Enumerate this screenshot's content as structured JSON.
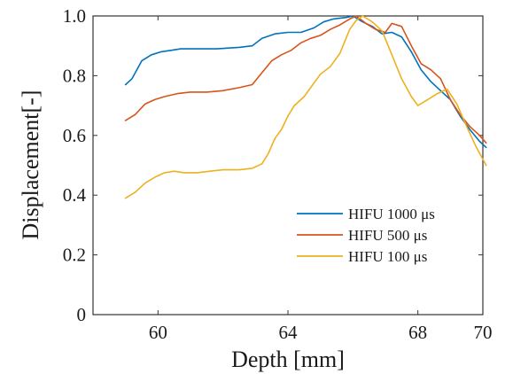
{
  "chart_data": {
    "type": "line",
    "xlabel": "Depth [mm]",
    "ylabel": "Displacement[-]",
    "xlim": [
      58,
      70
    ],
    "ylim": [
      0,
      1.0
    ],
    "x_ticks": [
      60,
      64,
      68,
      70
    ],
    "y_ticks": [
      0,
      0.2,
      0.4,
      0.6,
      0.8,
      1.0
    ],
    "y_tick_labels": [
      "0",
      "0.2",
      "0.4",
      "0.6",
      "0.8",
      "1.0"
    ],
    "grid": false,
    "legend_position": "lower-right",
    "series": [
      {
        "name": "HIFU 1000 μs",
        "color": "#0072BD",
        "x": [
          59.0,
          59.2,
          59.5,
          59.8,
          60.1,
          60.4,
          60.7,
          61.2,
          61.8,
          62.5,
          62.9,
          63.2,
          63.6,
          64.0,
          64.4,
          64.8,
          65.1,
          65.4,
          65.8,
          66.0,
          66.3,
          66.6,
          66.9,
          67.2,
          67.5,
          67.8,
          68.1,
          68.4,
          68.7,
          69.0,
          69.3,
          69.6,
          69.9,
          70.1
        ],
        "y": [
          0.77,
          0.79,
          0.85,
          0.87,
          0.88,
          0.885,
          0.89,
          0.89,
          0.89,
          0.895,
          0.9,
          0.925,
          0.94,
          0.945,
          0.945,
          0.96,
          0.98,
          0.99,
          0.995,
          1.0,
          0.98,
          0.965,
          0.94,
          0.945,
          0.93,
          0.88,
          0.82,
          0.78,
          0.75,
          0.72,
          0.665,
          0.62,
          0.58,
          0.56
        ]
      },
      {
        "name": "HIFU 500 μs",
        "color": "#D95319",
        "x": [
          59.0,
          59.3,
          59.6,
          59.9,
          60.2,
          60.6,
          61.0,
          61.5,
          62.0,
          62.5,
          62.9,
          63.2,
          63.5,
          63.8,
          64.1,
          64.4,
          64.7,
          65.0,
          65.3,
          65.6,
          65.9,
          66.1,
          66.4,
          66.7,
          67.0,
          67.2,
          67.5,
          67.8,
          68.1,
          68.4,
          68.7,
          69.0,
          69.3,
          69.6,
          69.9,
          70.1
        ],
        "y": [
          0.65,
          0.67,
          0.705,
          0.72,
          0.73,
          0.74,
          0.745,
          0.745,
          0.75,
          0.76,
          0.77,
          0.81,
          0.85,
          0.87,
          0.885,
          0.91,
          0.925,
          0.935,
          0.955,
          0.97,
          0.99,
          1.0,
          0.975,
          0.955,
          0.945,
          0.975,
          0.965,
          0.9,
          0.84,
          0.82,
          0.79,
          0.72,
          0.67,
          0.63,
          0.6,
          0.575
        ]
      },
      {
        "name": "HIFU 100 μs",
        "color": "#EDB120",
        "x": [
          59.0,
          59.3,
          59.6,
          59.9,
          60.2,
          60.5,
          60.8,
          61.2,
          61.6,
          62.0,
          62.5,
          62.9,
          63.2,
          63.4,
          63.6,
          63.8,
          64.0,
          64.2,
          64.5,
          64.8,
          65.0,
          65.3,
          65.6,
          65.9,
          66.1,
          66.3,
          66.6,
          66.9,
          67.2,
          67.5,
          67.8,
          68.0,
          68.3,
          68.6,
          68.9,
          69.2,
          69.5,
          69.8,
          70.1
        ],
        "y": [
          0.39,
          0.41,
          0.44,
          0.46,
          0.475,
          0.48,
          0.475,
          0.475,
          0.48,
          0.485,
          0.485,
          0.49,
          0.505,
          0.54,
          0.59,
          0.62,
          0.665,
          0.7,
          0.73,
          0.775,
          0.805,
          0.83,
          0.875,
          0.955,
          0.985,
          1.0,
          0.98,
          0.95,
          0.87,
          0.79,
          0.73,
          0.7,
          0.72,
          0.74,
          0.755,
          0.705,
          0.63,
          0.56,
          0.5
        ]
      }
    ]
  }
}
